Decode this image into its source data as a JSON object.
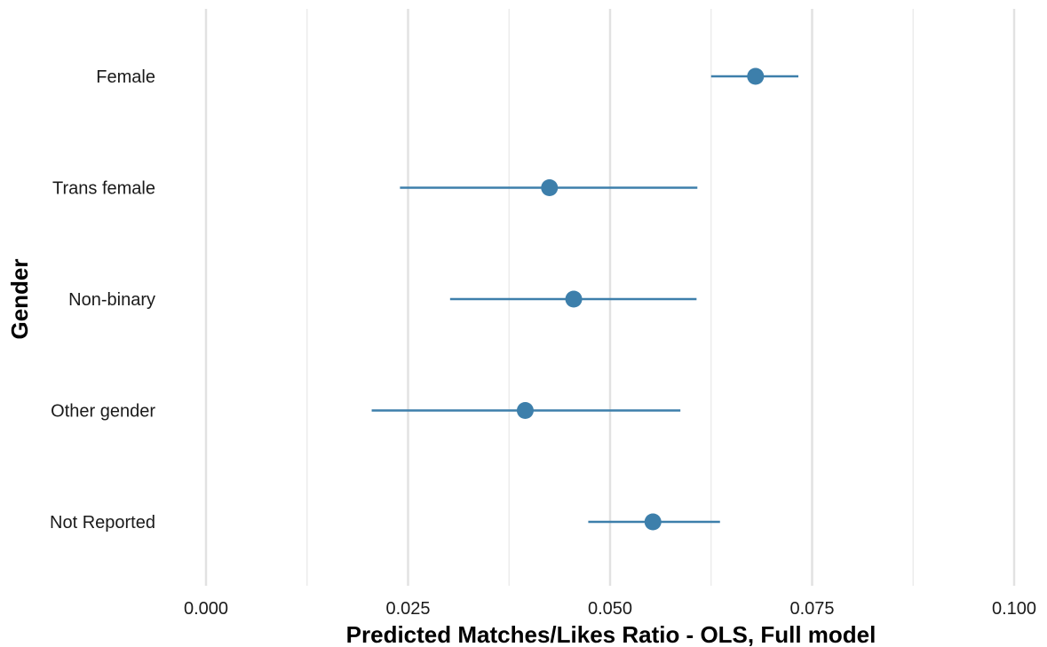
{
  "chart_data": {
    "type": "scatter",
    "subtype": "point-range",
    "title": "",
    "xlabel": "Predicted Matches/Likes Ratio - OLS, Full model",
    "ylabel": "Gender",
    "xlim": [
      0.0,
      0.1
    ],
    "x_ticks": [
      "0.000",
      "0.025",
      "0.050",
      "0.075",
      "0.100"
    ],
    "x_tick_values": [
      0.0,
      0.025,
      0.05,
      0.075,
      0.1
    ],
    "minor_grid_values": [
      0.0125,
      0.0375,
      0.0625,
      0.0875
    ],
    "grid": true,
    "grid_axis": "x",
    "color": "#3d7fab",
    "categories": [
      "Female",
      "Trans female",
      "Non-binary",
      "Other gender",
      "Not Reported"
    ],
    "estimates": [
      0.068,
      0.0425,
      0.0455,
      0.0395,
      0.0553
    ],
    "lower": [
      0.0625,
      0.024,
      0.0302,
      0.0205,
      0.0473
    ],
    "upper": [
      0.0733,
      0.0608,
      0.0607,
      0.0587,
      0.0636
    ]
  }
}
